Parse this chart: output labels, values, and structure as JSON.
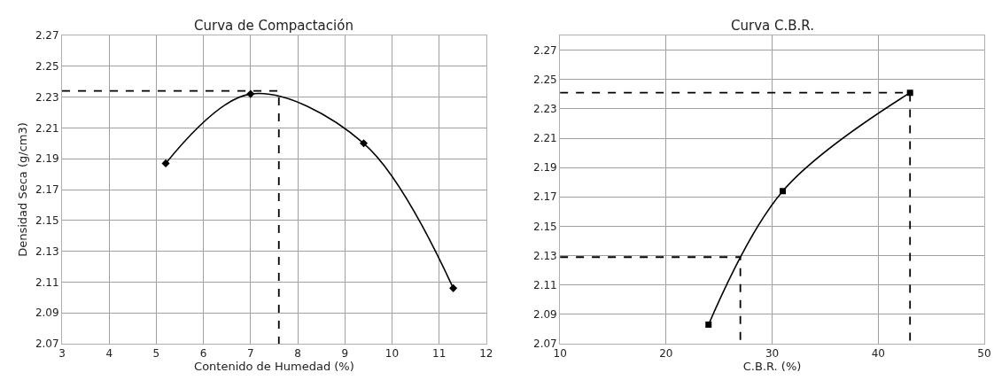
{
  "chart_data": [
    {
      "type": "line",
      "title": "Curva de Compactación",
      "xlabel": "Contenido de Humedad (%)",
      "ylabel": "Densidad Seca (g/cm3)",
      "xlim": [
        3,
        12
      ],
      "xticks": [
        3,
        4,
        5,
        6,
        7,
        8,
        9,
        10,
        11,
        12
      ],
      "ylim": [
        2.07,
        2.27
      ],
      "yticks": [
        2.07,
        2.09,
        2.11,
        2.13,
        2.15,
        2.17,
        2.19,
        2.21,
        2.23,
        2.25,
        2.27
      ],
      "grid": true,
      "series": [
        {
          "color": "#000000",
          "x": [
            5.2,
            7.0,
            9.4,
            11.3
          ],
          "values": [
            2.187,
            2.232,
            2.2,
            2.106
          ],
          "marker": "diamond",
          "line_style": "solid"
        },
        {
          "color": "#000000",
          "x": [
            3,
            7.6,
            7.6
          ],
          "values": [
            2.234,
            2.234,
            2.07
          ],
          "marker": "none",
          "line_style": "dashed"
        }
      ]
    },
    {
      "type": "line",
      "title": "Curva C.B.R.",
      "xlabel": "C.B.R. (%)",
      "xlim": [
        10,
        50
      ],
      "xticks": [
        10,
        20,
        30,
        40,
        50
      ],
      "ylim": [
        2.07,
        2.28
      ],
      "yticks": [
        2.07,
        2.09,
        2.11,
        2.13,
        2.15,
        2.17,
        2.19,
        2.21,
        2.23,
        2.25,
        2.27
      ],
      "grid": true,
      "series": [
        {
          "color": "#000000",
          "x": [
            24,
            31,
            43
          ],
          "values": [
            2.083,
            2.174,
            2.241
          ],
          "marker": "square",
          "line_style": "solid"
        },
        {
          "color": "#000000",
          "x": [
            10,
            43,
            43
          ],
          "values": [
            2.241,
            2.241,
            2.07
          ],
          "marker": "none",
          "line_style": "dashed"
        },
        {
          "color": "#000000",
          "x": [
            10,
            27,
            27
          ],
          "values": [
            2.129,
            2.129,
            2.07
          ],
          "marker": "none",
          "line_style": "dashed"
        }
      ]
    }
  ]
}
